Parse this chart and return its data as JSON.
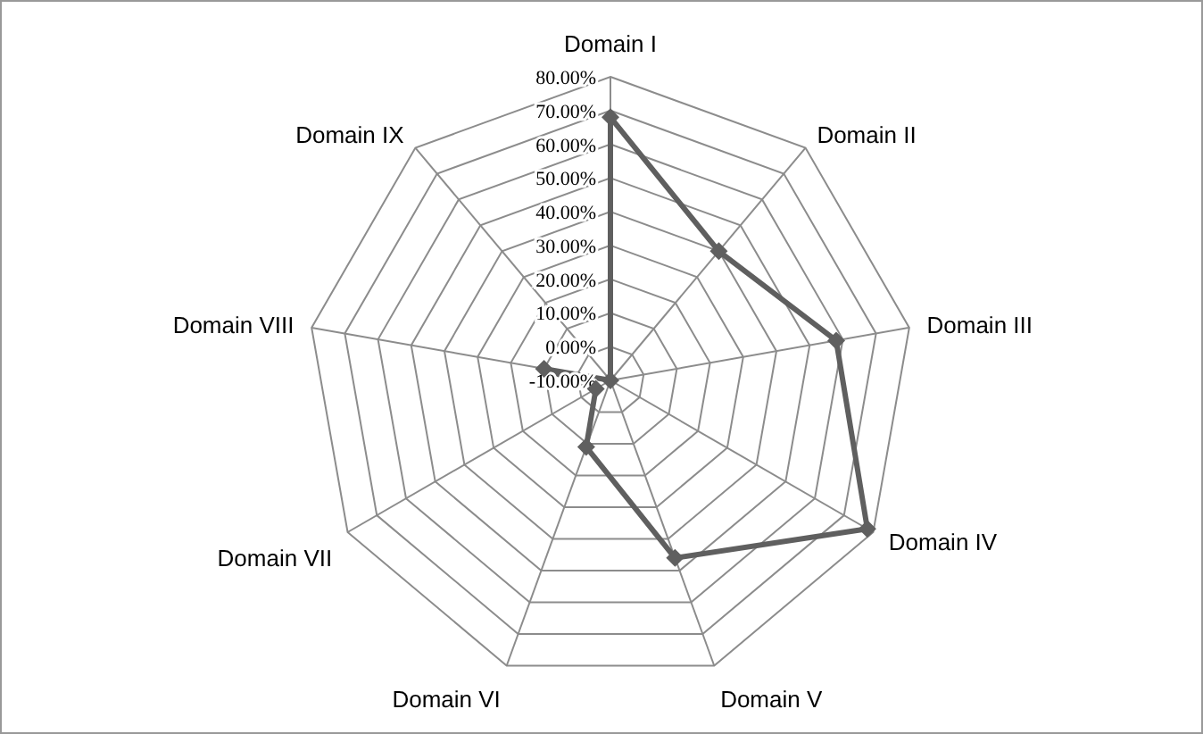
{
  "chart_data": {
    "type": "radar",
    "categories": [
      "Domain I",
      "Domain II",
      "Domain III",
      "Domain IV",
      "Domain V",
      "Domain VI",
      "Domain VII",
      "Domain VIII",
      "Domain IX"
    ],
    "series": [
      {
        "color": "#5f5f5f",
        "values": [
          68,
          40,
          58,
          78,
          46,
          11,
          -5,
          10,
          -10
        ]
      }
    ],
    "ylim": [
      -10,
      80
    ],
    "yticks": [
      {
        "value": -10,
        "label": "-10.00%"
      },
      {
        "value": 0,
        "label": "0.00%"
      },
      {
        "value": 10,
        "label": "10.00%"
      },
      {
        "value": 20,
        "label": "20.00%"
      },
      {
        "value": 30,
        "label": "30.00%"
      },
      {
        "value": 40,
        "label": "40.00%"
      },
      {
        "value": 50,
        "label": "50.00%"
      },
      {
        "value": 60,
        "label": "60.00%"
      },
      {
        "value": 70,
        "label": "70.00%"
      },
      {
        "value": 80,
        "label": "80.00%"
      }
    ],
    "grid": true,
    "marker": "diamond"
  }
}
